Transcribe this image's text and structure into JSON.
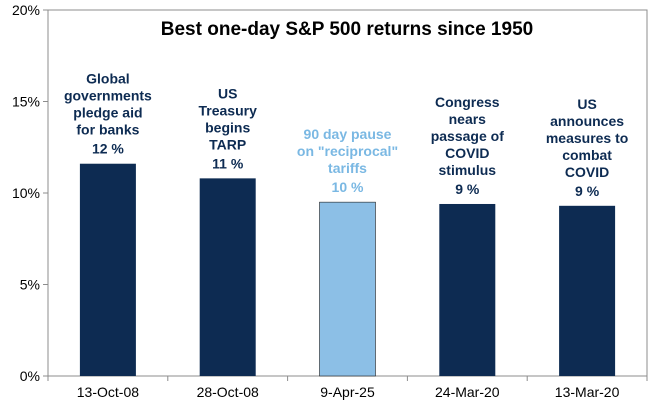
{
  "chart_data": {
    "type": "bar",
    "title": "Best one-day S&P 500 returns since 1950",
    "xlabel": "",
    "ylabel": "",
    "ylim": [
      0,
      20
    ],
    "yticks": [
      0,
      5,
      10,
      15,
      20
    ],
    "ytick_labels": [
      "0%",
      "5%",
      "10%",
      "15%",
      "20%"
    ],
    "categories": [
      "13-Oct-08",
      "28-Oct-08",
      "9-Apr-25",
      "24-Mar-20",
      "13-Mar-20"
    ],
    "values": [
      11.6,
      10.8,
      9.5,
      9.4,
      9.3
    ],
    "data_labels": [
      "12 %",
      "11 %",
      "10 %",
      "9 %",
      "9 %"
    ],
    "annotations": [
      [
        "Global",
        "governments",
        "pledge aid",
        "for banks"
      ],
      [
        "US",
        "Treasury",
        "begins",
        "TARP"
      ],
      [
        "90 day pause",
        "on \"reciprocal\"",
        "tariffs"
      ],
      [
        "Congress",
        "nears",
        "passage of",
        "COVID",
        "stimulus"
      ],
      [
        "US",
        "announces",
        "measures to",
        "combat",
        "COVID"
      ]
    ],
    "highlight_index": 2,
    "colors": {
      "bar": "#0d2b52",
      "highlight_bar": "#8cbfe6",
      "annotation_text": "#0d2b52",
      "highlight_text": "#7ab8e3",
      "grid": "none"
    },
    "grid": false,
    "legend": "none"
  }
}
